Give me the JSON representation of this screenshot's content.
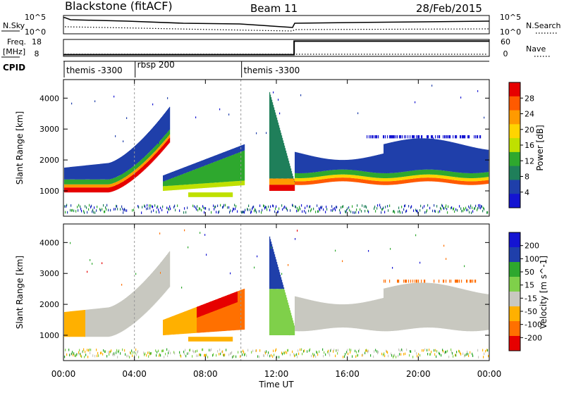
{
  "header": {
    "station": "Blackstone (fitACF)",
    "beam": "Beam 11",
    "date": "28/Feb/2015"
  },
  "panels": {
    "nsky": {
      "left_label": "N.Sky",
      "right_label": "N.Search",
      "left_ticks": [
        "10^5",
        "10^0"
      ],
      "right_ticks": [
        "10^5",
        "10^0"
      ]
    },
    "freq": {
      "left_label_top": "Freq.",
      "left_label_bottom": "[MHz]",
      "right_label": "Nave",
      "left_ticks": [
        "18",
        "8"
      ],
      "right_ticks": [
        "60",
        "0"
      ],
      "freq_level_before_13h": 9,
      "freq_level_after_13h": 17
    },
    "cpid": {
      "label": "CPID",
      "segments": [
        {
          "label": "themis -3300",
          "start_hour": 0
        },
        {
          "label": "rbsp 200",
          "start_hour": 4
        },
        {
          "label": "themis -3300",
          "start_hour": 10
        }
      ]
    }
  },
  "chart_data": [
    {
      "type": "heatmap",
      "title": "Power",
      "ylabel": "Slant Range [km]",
      "xlabel": "Time UT",
      "xlim": [
        0,
        24
      ],
      "ylim": [
        180,
        4600
      ],
      "x_ticks": [
        "00:00",
        "04:00",
        "08:00",
        "12:00",
        "16:00",
        "20:00",
        "00:00"
      ],
      "y_ticks": [
        1000,
        2000,
        3000,
        4000
      ],
      "colorbar_label": "Power [dB]",
      "colorbar_ticks": [
        "28",
        "24",
        "20",
        "16",
        "12",
        "8",
        "4"
      ],
      "colorbar_colors": [
        "#e60000",
        "#ff5a00",
        "#ff9a00",
        "#ffd400",
        "#bfe000",
        "#2ea82e",
        "#1f7f5a",
        "#1f3faa",
        "#1414d2"
      ],
      "features": [
        {
          "name": "band-0-6",
          "hours": [
            0,
            6
          ],
          "range_km": [
            1000,
            2600
          ],
          "peak_db": 28
        },
        {
          "name": "band-6-10",
          "hours": [
            5.5,
            10
          ],
          "range_km": [
            900,
            2700
          ],
          "peak_db": 20
        },
        {
          "name": "band-12-13",
          "hours": [
            11.8,
            13
          ],
          "range_km": [
            1000,
            4200
          ],
          "peak_db": 20
        },
        {
          "name": "band-13-24",
          "hours": [
            13,
            24
          ],
          "range_km": [
            1200,
            2800
          ],
          "peak_db": 24
        }
      ]
    },
    {
      "type": "heatmap",
      "title": "Velocity",
      "ylabel": "Slant Range [km]",
      "xlabel": "Time UT",
      "xlim": [
        0,
        24
      ],
      "ylim": [
        180,
        4600
      ],
      "x_ticks": [
        "00:00",
        "04:00",
        "08:00",
        "12:00",
        "16:00",
        "20:00",
        "00:00"
      ],
      "y_ticks": [
        1000,
        2000,
        3000,
        4000
      ],
      "colorbar_label": "Velocity [m s^-1]",
      "colorbar_ticks": [
        "200",
        "100",
        "50",
        "15",
        "-15",
        "-50",
        "-100",
        "-200"
      ],
      "colorbar_colors": [
        "#1414d2",
        "#1f3faa",
        "#2ea82e",
        "#7fd04a",
        "#c8c8c0",
        "#ffb000",
        "#ff7000",
        "#e60000"
      ],
      "features": [
        {
          "name": "ground-scatter",
          "hours": [
            0,
            24
          ],
          "range_km": [
            1200,
            2800
          ],
          "velocity": 0
        },
        {
          "name": "orange-patch",
          "hours": [
            5.5,
            10
          ],
          "range_km": [
            900,
            2500
          ],
          "velocity": -60
        },
        {
          "name": "green-patch",
          "hours": [
            11.8,
            12.8
          ],
          "range_km": [
            1000,
            2500
          ],
          "velocity": 50
        }
      ]
    }
  ],
  "x_axis_label": "Time UT"
}
